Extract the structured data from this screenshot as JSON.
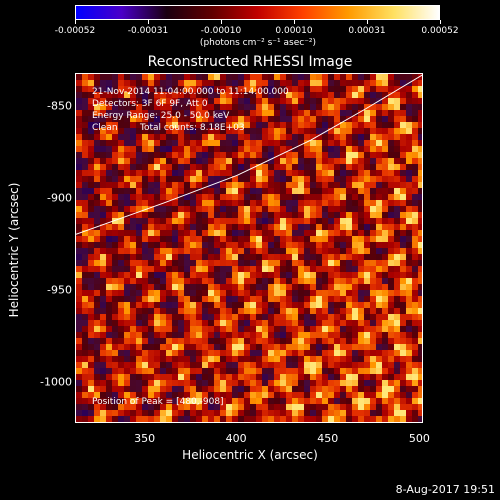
{
  "colorbar": {
    "ticks": [
      "-0.00052",
      "-0.00031",
      "-0.00010",
      "0.00010",
      "0.00031",
      "0.00052"
    ],
    "units": "(photons cm⁻² s⁻¹ asec⁻²)",
    "range": [
      -0.00052,
      0.00052
    ],
    "colors": [
      "#0000ff",
      "#4a00c8",
      "#1a0010",
      "#600000",
      "#c00000",
      "#ff4000",
      "#ff9a00",
      "#ffe060",
      "#ffffff"
    ]
  },
  "chart_data": {
    "type": "heatmap",
    "title": "Reconstructed RHESSI Image",
    "xlabel": "Heliocentric X (arcsec)",
    "ylabel": "Heliocentric Y (arcsec)",
    "xlim": [
      312,
      502
    ],
    "ylim": [
      -1022,
      -832
    ],
    "x_ticks": [
      "350",
      "400",
      "450",
      "500"
    ],
    "y_ticks": [
      "-850",
      "-900",
      "-950",
      "-1000"
    ],
    "annotations": [
      "21-Nov-2014 11:04:00.000 to 11:14:00.000",
      "Detectors: 3F 6F 9F, Att 0",
      "Energy Range: 25.0 - 50.0 keV",
      "Clean",
      "Total counts: 8.18E+03",
      "Position of Peak = [480,-908]"
    ],
    "peak": {
      "x": 480,
      "y": -908
    },
    "limb": [
      [
        312,
        -919
      ],
      [
        360,
        -902
      ],
      [
        400,
        -887
      ],
      [
        440,
        -868
      ],
      [
        470,
        -851
      ],
      [
        502,
        -832
      ]
    ]
  },
  "footer": "8-Aug-2017 19:51"
}
